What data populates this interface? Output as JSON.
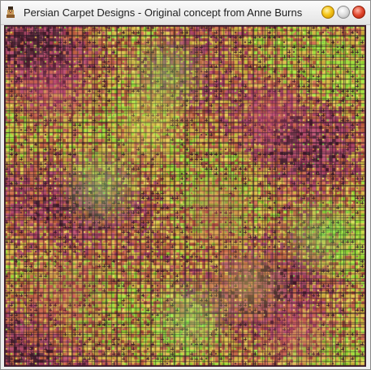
{
  "window": {
    "title": "Persian Carpet Designs - Original concept from Anne Burns",
    "icon": "java-duke-icon",
    "controls": {
      "minimize_icon": "minimize-icon",
      "maximize_icon": "maximize-icon",
      "close_icon": "close-icon",
      "minimize_color": "#f5c518",
      "maximize_color": "#dcdcdc",
      "close_color": "#e0452c"
    }
  },
  "carpet": {
    "pattern": "recursive persian carpet",
    "palette": [
      "#c8d84a",
      "#9fdc3c",
      "#d9b84a",
      "#c86a4a",
      "#b04a6a",
      "#5a2a3a",
      "#e8e070",
      "#7ac850"
    ]
  }
}
